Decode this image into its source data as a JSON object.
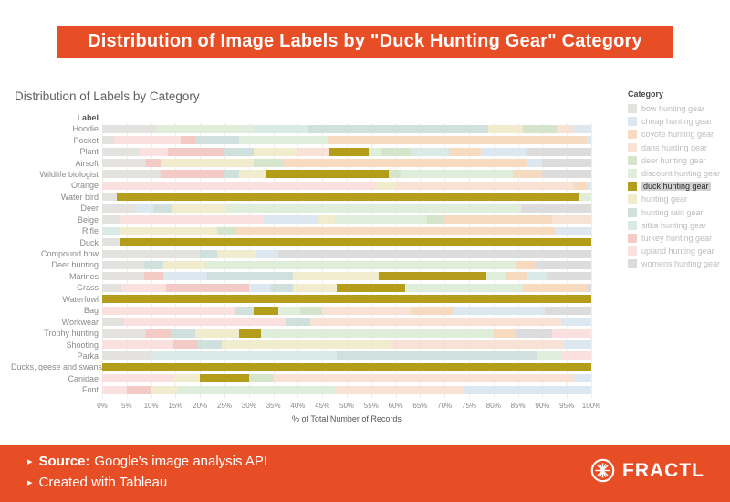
{
  "banner": {
    "title": "Distribution of Image Labels by \"Duck Hunting Gear\" Category"
  },
  "colors": {
    "accent": "#e74e26",
    "highlight": "#b39d1a",
    "grid": "#efefef"
  },
  "legend": {
    "title": "Category",
    "highlighted": "duck hunting gear",
    "items": [
      {
        "label": "bow hunting gear",
        "color": "#e4e2df"
      },
      {
        "label": "cheap hunting gear",
        "color": "#dde7f0"
      },
      {
        "label": "coyote hunting gear",
        "color": "#f6dbc0"
      },
      {
        "label": "dans hunting gear",
        "color": "#f8e2d6"
      },
      {
        "label": "deer hunting gear",
        "color": "#d4e5cc"
      },
      {
        "label": "discount hunting gear",
        "color": "#dfeedb"
      },
      {
        "label": "duck hunting gear",
        "color": "#b39d1a"
      },
      {
        "label": "hunting gear",
        "color": "#f1ecce"
      },
      {
        "label": "hunting rain gear",
        "color": "#cfe0dd"
      },
      {
        "label": "sitka hunting gear",
        "color": "#d9eae7"
      },
      {
        "label": "turkey hunting gear",
        "color": "#f4cac6"
      },
      {
        "label": "upland hunting gear",
        "color": "#fae1df"
      },
      {
        "label": "womens hunting gear",
        "color": "#dcdcdc"
      }
    ]
  },
  "footer": {
    "bullet": "▸",
    "source_label": "Source:",
    "source_text": "Google's image analysis API",
    "created_text": "Created with Tableau",
    "brand": "FRACTL"
  },
  "chart_data": {
    "type": "bar",
    "variant": "stacked-horizontal-100pct",
    "title": "Distribution of Labels by Category",
    "row_header": "Label",
    "xlabel": "% of Total Number of Records",
    "xlim": [
      0,
      100
    ],
    "x_ticks": [
      "0%",
      "5%",
      "10%",
      "15%",
      "20%",
      "25%",
      "30%",
      "35%",
      "40%",
      "45%",
      "50%",
      "55%",
      "60%",
      "65%",
      "70%",
      "75%",
      "80%",
      "85%",
      "90%",
      "95%",
      "100%"
    ],
    "grid": true,
    "legend_position": "right",
    "categories": [
      "Hoodie",
      "Pocket",
      "Plant",
      "Airsoft",
      "Wildlife biologist",
      "Orange",
      "Water bird",
      "Deer",
      "Beige",
      "Rifle",
      "Duck",
      "Compound bow",
      "Deer hunting",
      "Marines",
      "Grass",
      "Waterfowl",
      "Bag",
      "Workwear",
      "Trophy hunting",
      "Shooting",
      "Parka",
      "Ducks, geese and swans",
      "Canidae",
      "Font"
    ],
    "rows": [
      {
        "label": "Hoodie",
        "segments": [
          [
            "bow hunting gear",
            11
          ],
          [
            "discount hunting gear",
            20
          ],
          [
            "sitka hunting gear",
            11
          ],
          [
            "hunting rain gear",
            37
          ],
          [
            "hunting gear",
            7
          ],
          [
            "deer hunting gear",
            7
          ],
          [
            "dans hunting gear",
            3.5
          ],
          [
            "cheap hunting gear",
            3.5
          ]
        ]
      },
      {
        "label": "Pocket",
        "segments": [
          [
            "bow hunting gear",
            2.5
          ],
          [
            "upland hunting gear",
            13.5
          ],
          [
            "turkey hunting gear",
            3
          ],
          [
            "hunting rain gear",
            9
          ],
          [
            "discount hunting gear",
            18
          ],
          [
            "coyote hunting gear",
            53
          ],
          [
            "cheap hunting gear",
            1
          ]
        ]
      },
      {
        "label": "Plant",
        "segments": [
          [
            "bow hunting gear",
            7.5
          ],
          [
            "upland hunting gear",
            6
          ],
          [
            "turkey hunting gear",
            11.5
          ],
          [
            "hunting rain gear",
            6
          ],
          [
            "hunting gear",
            9
          ],
          [
            "dans hunting gear",
            6.5
          ],
          [
            "duck hunting gear",
            8
          ],
          [
            "discount hunting gear",
            2.5
          ],
          [
            "deer hunting gear",
            6
          ],
          [
            "sitka hunting gear",
            8
          ],
          [
            "coyote hunting gear",
            6.5
          ],
          [
            "cheap hunting gear",
            9.5
          ],
          [
            "womens hunting gear",
            13
          ]
        ]
      },
      {
        "label": "Airsoft",
        "segments": [
          [
            "bow hunting gear",
            9
          ],
          [
            "turkey hunting gear",
            3
          ],
          [
            "hunting gear",
            19
          ],
          [
            "deer hunting gear",
            6
          ],
          [
            "coyote hunting gear",
            50
          ],
          [
            "cheap hunting gear",
            3
          ],
          [
            "womens hunting gear",
            10
          ]
        ]
      },
      {
        "label": "Wildlife biologist",
        "segments": [
          [
            "bow hunting gear",
            12
          ],
          [
            "turkey hunting gear",
            13
          ],
          [
            "hunting rain gear",
            3
          ],
          [
            "hunting gear",
            5.5
          ],
          [
            "duck hunting gear",
            25
          ],
          [
            "deer hunting gear",
            2.5
          ],
          [
            "discount hunting gear",
            23
          ],
          [
            "coyote hunting gear",
            6
          ],
          [
            "womens hunting gear",
            10
          ]
        ]
      },
      {
        "label": "Orange",
        "segments": [
          [
            "upland hunting gear",
            56
          ],
          [
            "hunting gear",
            4
          ],
          [
            "dans hunting gear",
            36.5
          ],
          [
            "coyote hunting gear",
            2.5
          ],
          [
            "cheap hunting gear",
            1
          ]
        ]
      },
      {
        "label": "Water bird",
        "segments": [
          [
            "bow hunting gear",
            3
          ],
          [
            "duck hunting gear",
            94.5
          ],
          [
            "discount hunting gear",
            2.5
          ]
        ]
      },
      {
        "label": "Deer",
        "segments": [
          [
            "bow hunting gear",
            7
          ],
          [
            "cheap hunting gear",
            3.5
          ],
          [
            "hunting rain gear",
            4
          ],
          [
            "hunting gear",
            11
          ],
          [
            "discount hunting gear",
            60.5
          ],
          [
            "womens hunting gear",
            14.5
          ]
        ]
      },
      {
        "label": "Beige",
        "segments": [
          [
            "bow hunting gear",
            3.5
          ],
          [
            "upland hunting gear",
            29.5
          ],
          [
            "cheap hunting gear",
            11
          ],
          [
            "hunting gear",
            3.5
          ],
          [
            "discount hunting gear",
            19
          ],
          [
            "deer hunting gear",
            3.5
          ],
          [
            "coyote hunting gear",
            22
          ],
          [
            "dans hunting gear",
            8
          ]
        ]
      },
      {
        "label": "Rifle",
        "segments": [
          [
            "sitka hunting gear",
            3.5
          ],
          [
            "hunting gear",
            20
          ],
          [
            "deer hunting gear",
            4
          ],
          [
            "coyote hunting gear",
            65
          ],
          [
            "cheap hunting gear",
            7.5
          ]
        ]
      },
      {
        "label": "Duck",
        "segments": [
          [
            "bow hunting gear",
            3.5
          ],
          [
            "duck hunting gear",
            96.5
          ]
        ]
      },
      {
        "label": "Compound bow",
        "segments": [
          [
            "bow hunting gear",
            20
          ],
          [
            "hunting rain gear",
            3.5
          ],
          [
            "hunting gear",
            8
          ],
          [
            "cheap hunting gear",
            4.5
          ],
          [
            "womens hunting gear",
            64
          ]
        ]
      },
      {
        "label": "Deer hunting",
        "segments": [
          [
            "bow hunting gear",
            8.5
          ],
          [
            "hunting rain gear",
            4
          ],
          [
            "hunting gear",
            8.5
          ],
          [
            "discount hunting gear",
            63.5
          ],
          [
            "coyote hunting gear",
            4
          ],
          [
            "womens hunting gear",
            11.5
          ]
        ]
      },
      {
        "label": "Marines",
        "segments": [
          [
            "bow hunting gear",
            8.5
          ],
          [
            "turkey hunting gear",
            4
          ],
          [
            "cheap hunting gear",
            9
          ],
          [
            "hunting rain gear",
            17.5
          ],
          [
            "hunting gear",
            17.5
          ],
          [
            "duck hunting gear",
            22
          ],
          [
            "discount hunting gear",
            4
          ],
          [
            "coyote hunting gear",
            4.5
          ],
          [
            "sitka hunting gear",
            4
          ],
          [
            "womens hunting gear",
            9
          ]
        ]
      },
      {
        "label": "Grass",
        "segments": [
          [
            "bow hunting gear",
            4
          ],
          [
            "upland hunting gear",
            9
          ],
          [
            "turkey hunting gear",
            17
          ],
          [
            "cheap hunting gear",
            4.5
          ],
          [
            "hunting rain gear",
            4.5
          ],
          [
            "hunting gear",
            9
          ],
          [
            "duck hunting gear",
            14
          ],
          [
            "discount hunting gear",
            24
          ],
          [
            "coyote hunting gear",
            13
          ],
          [
            "womens hunting gear",
            1
          ]
        ]
      },
      {
        "label": "Waterfowl",
        "segments": [
          [
            "duck hunting gear",
            100
          ]
        ]
      },
      {
        "label": "Bag",
        "segments": [
          [
            "upland hunting gear",
            27
          ],
          [
            "hunting rain gear",
            4
          ],
          [
            "duck hunting gear",
            5
          ],
          [
            "discount hunting gear",
            4.5
          ],
          [
            "deer hunting gear",
            4.5
          ],
          [
            "dans hunting gear",
            18
          ],
          [
            "coyote hunting gear",
            9
          ],
          [
            "cheap hunting gear",
            18.5
          ],
          [
            "womens hunting gear",
            9.5
          ]
        ]
      },
      {
        "label": "Workwear",
        "segments": [
          [
            "bow hunting gear",
            4.5
          ],
          [
            "upland hunting gear",
            33
          ],
          [
            "hunting rain gear",
            5
          ],
          [
            "dans hunting gear",
            51.5
          ],
          [
            "cheap hunting gear",
            6
          ]
        ]
      },
      {
        "label": "Trophy hunting",
        "segments": [
          [
            "bow hunting gear",
            9
          ],
          [
            "turkey hunting gear",
            5
          ],
          [
            "hunting rain gear",
            5
          ],
          [
            "hunting gear",
            9
          ],
          [
            "duck hunting gear",
            4.5
          ],
          [
            "discount hunting gear",
            47.5
          ],
          [
            "coyote hunting gear",
            4.5
          ],
          [
            "womens hunting gear",
            7.5
          ],
          [
            "upland hunting gear",
            8
          ]
        ]
      },
      {
        "label": "Shooting",
        "segments": [
          [
            "upland hunting gear",
            14.5
          ],
          [
            "turkey hunting gear",
            5
          ],
          [
            "hunting rain gear",
            5
          ],
          [
            "hunting gear",
            34.5
          ],
          [
            "dans hunting gear",
            35.5
          ],
          [
            "cheap hunting gear",
            5.5
          ]
        ]
      },
      {
        "label": "Parka",
        "segments": [
          [
            "bow hunting gear",
            10
          ],
          [
            "sitka hunting gear",
            38
          ],
          [
            "hunting rain gear",
            41
          ],
          [
            "discount hunting gear",
            5
          ],
          [
            "upland hunting gear",
            6
          ]
        ]
      },
      {
        "label": "Ducks, geese and swans",
        "segments": [
          [
            "duck hunting gear",
            100
          ]
        ]
      },
      {
        "label": "Canidae",
        "segments": [
          [
            "upland hunting gear",
            14.5
          ],
          [
            "hunting gear",
            5.5
          ],
          [
            "duck hunting gear",
            10
          ],
          [
            "deer hunting gear",
            5
          ],
          [
            "dans hunting gear",
            61.5
          ],
          [
            "cheap hunting gear",
            3.5
          ]
        ]
      },
      {
        "label": "Font",
        "segments": [
          [
            "upland hunting gear",
            5
          ],
          [
            "turkey hunting gear",
            5
          ],
          [
            "hunting gear",
            5.5
          ],
          [
            "discount hunting gear",
            32
          ],
          [
            "dans hunting gear",
            26.5
          ],
          [
            "cheap hunting gear",
            26
          ]
        ]
      }
    ]
  }
}
